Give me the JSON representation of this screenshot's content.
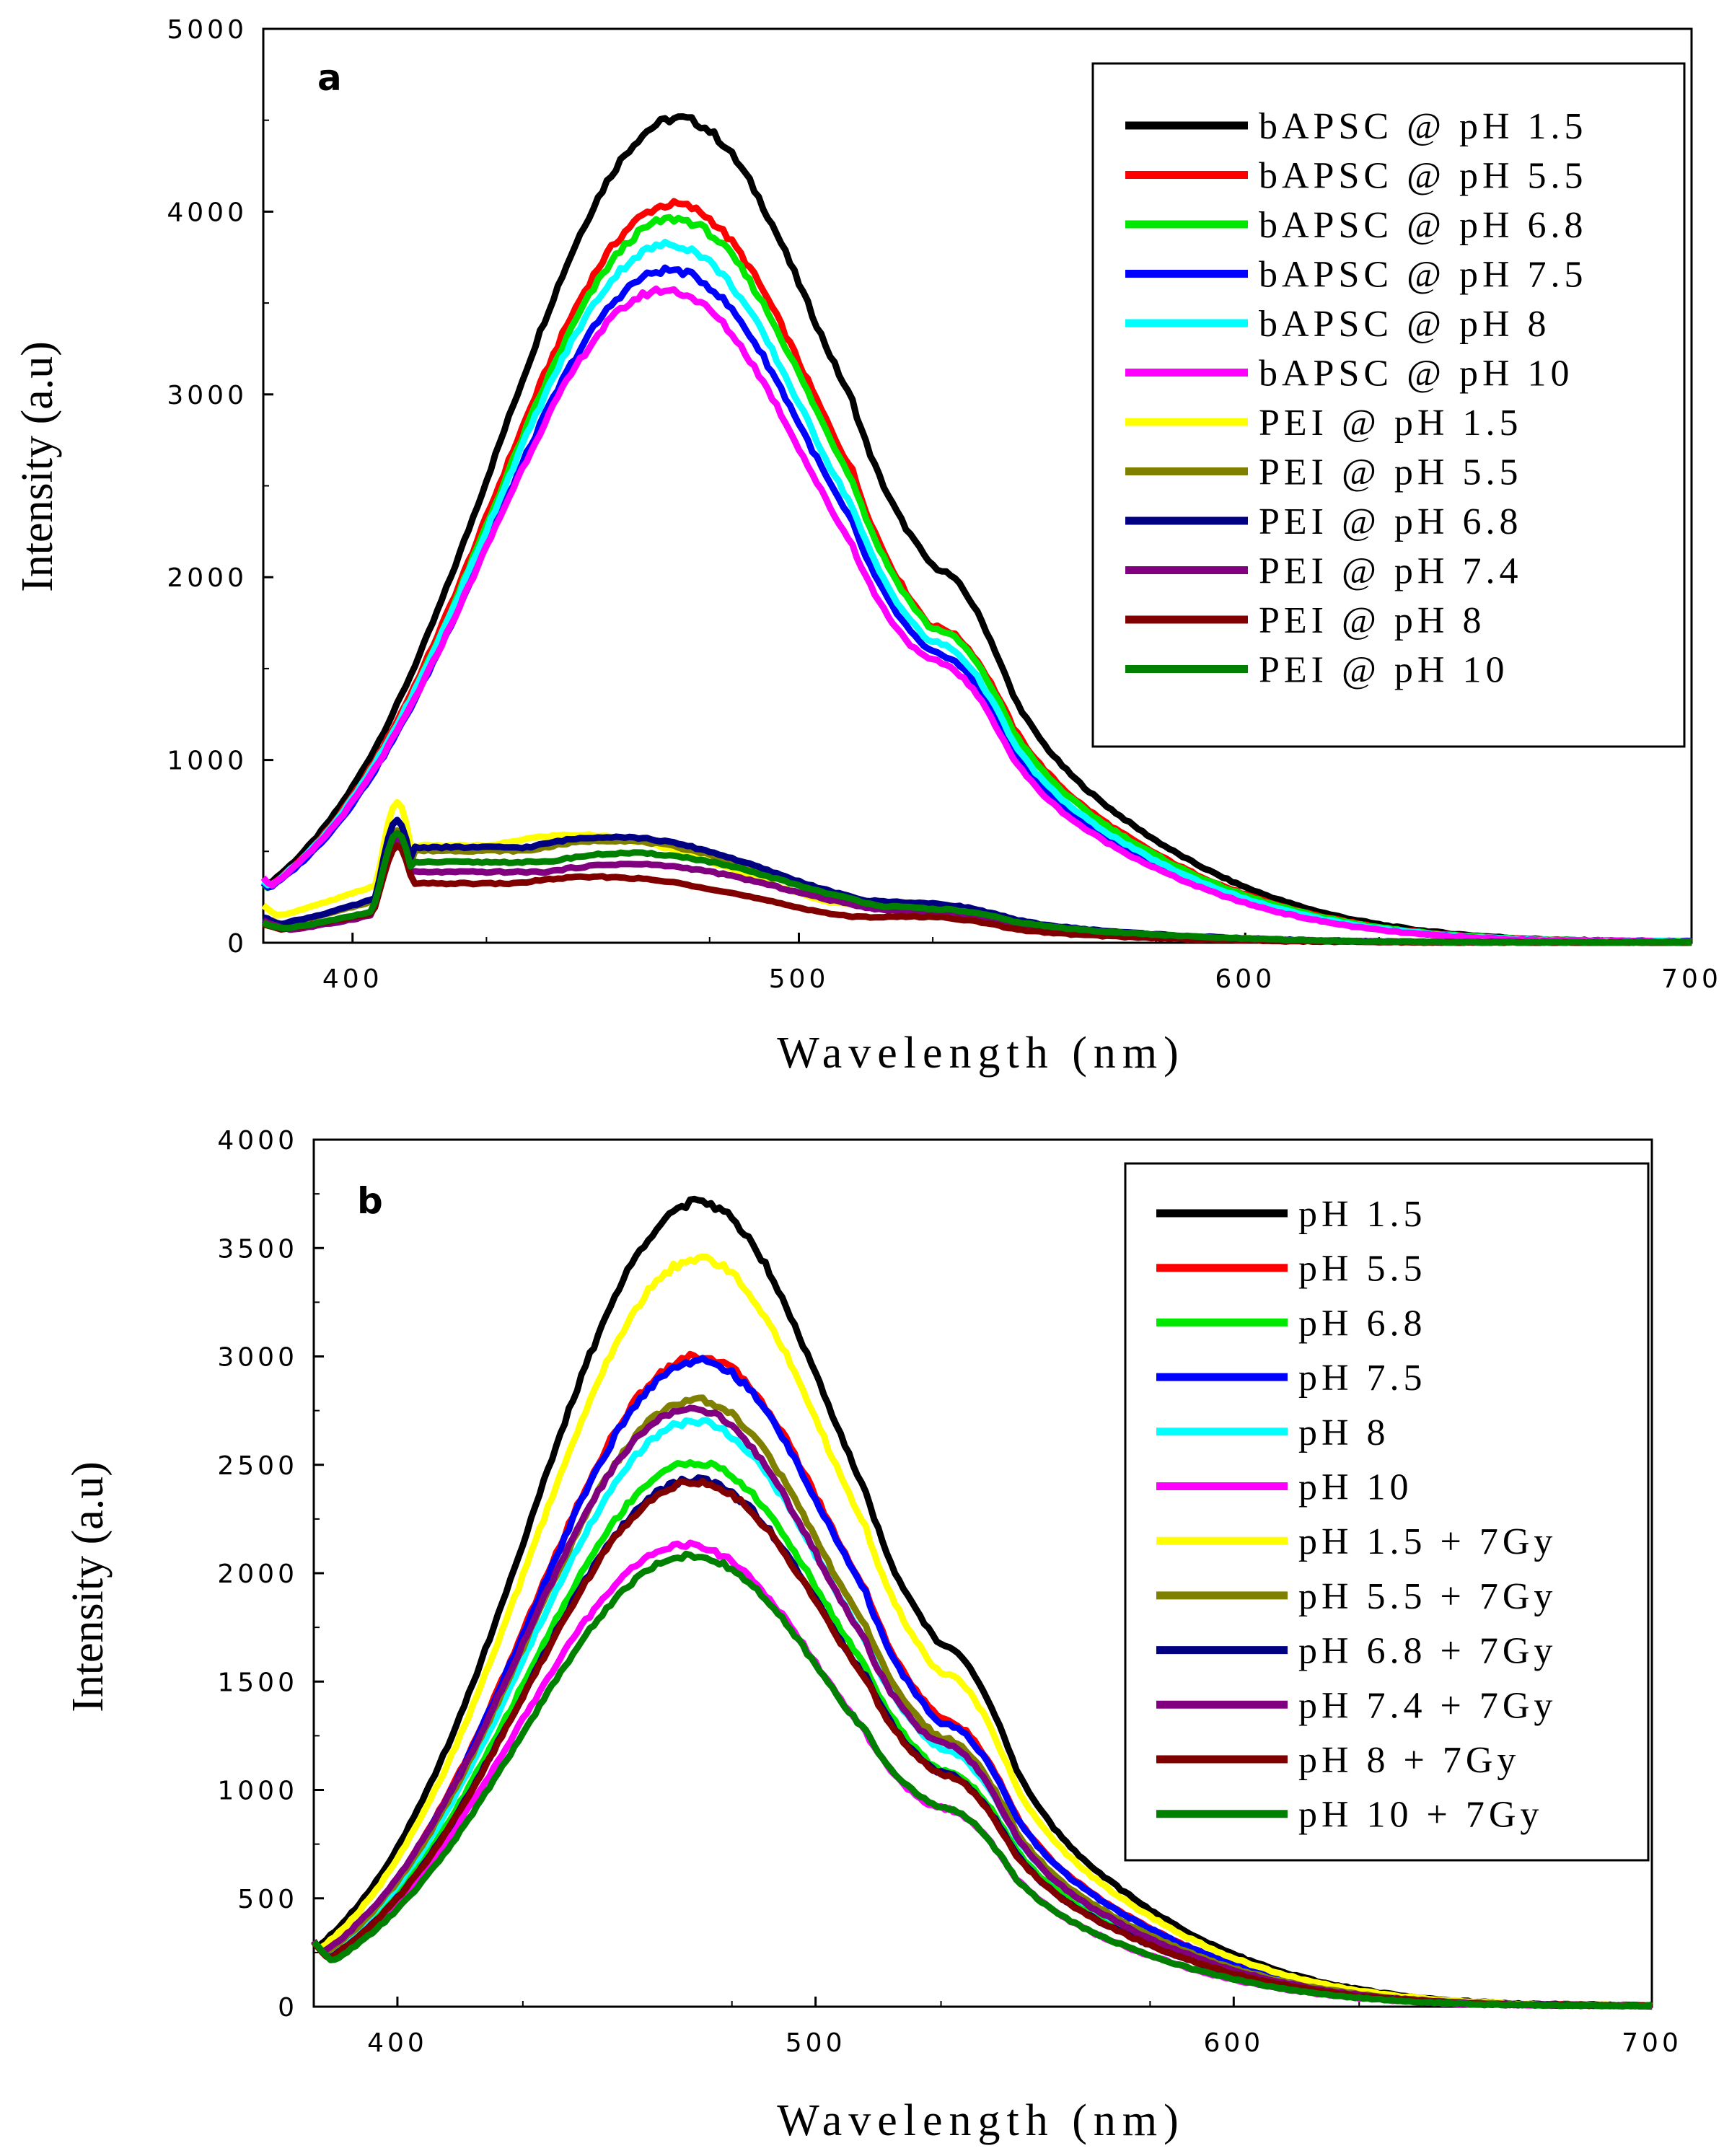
{
  "colors": {
    "black": "#000000",
    "red": "#ff0000",
    "green": "#00e800",
    "blue": "#0000ff",
    "cyan": "#00ffff",
    "magenta": "#ff00ff",
    "yellow": "#ffff00",
    "olive": "#808000",
    "navy": "#000080",
    "purple": "#800080",
    "maroon": "#800000",
    "darkgreen": "#008000"
  },
  "chart_data": [
    {
      "type": "line",
      "panel_label": "a",
      "xlabel": "Wavelength (nm)",
      "ylabel": "Intensity (a.u)",
      "xlim": [
        380,
        700
      ],
      "ylim": [
        0,
        5000
      ],
      "xticks": [
        400,
        500,
        600,
        700
      ],
      "yticks": [
        0,
        1000,
        2000,
        3000,
        4000,
        5000
      ],
      "legend_position": "top-right",
      "shoulder_x": 530,
      "series": [
        {
          "name": "bAPSC @ pH 1.5",
          "color": "#000000",
          "peak_x": 473,
          "peak_y": 4510,
          "shoulder_y": 1900,
          "start_y": 340,
          "bump_y": 0
        },
        {
          "name": "bAPSC @ pH 5.5",
          "color": "#ff0000",
          "peak_x": 472,
          "peak_y": 4040,
          "shoulder_y": 1560,
          "start_y": 330,
          "bump_y": 0
        },
        {
          "name": "bAPSC @ pH 6.8",
          "color": "#00e800",
          "peak_x": 472,
          "peak_y": 3960,
          "shoulder_y": 1560,
          "start_y": 330,
          "bump_y": 0
        },
        {
          "name": "bAPSC @ pH 7.5",
          "color": "#0000ff",
          "peak_x": 471,
          "peak_y": 3680,
          "shoulder_y": 1450,
          "start_y": 330,
          "bump_y": 0
        },
        {
          "name": "bAPSC @ pH 8",
          "color": "#00ffff",
          "peak_x": 471,
          "peak_y": 3820,
          "shoulder_y": 1500,
          "start_y": 340,
          "bump_y": 0
        },
        {
          "name": "bAPSC @ pH 10",
          "color": "#ff00ff",
          "peak_x": 470,
          "peak_y": 3570,
          "shoulder_y": 1420,
          "start_y": 360,
          "bump_y": 0
        },
        {
          "name": "PEI @ pH 1.5",
          "color": "#ffff00",
          "peak_x": 450,
          "peak_y": 590,
          "shoulder_y": 190,
          "start_y": 200,
          "bump_y": 770
        },
        {
          "name": "PEI @ pH 5.5",
          "color": "#808000",
          "peak_x": 458,
          "peak_y": 560,
          "shoulder_y": 180,
          "start_y": 140,
          "bump_y": 620
        },
        {
          "name": "PEI @ pH 6.8",
          "color": "#000080",
          "peak_x": 458,
          "peak_y": 580,
          "shoulder_y": 200,
          "start_y": 140,
          "bump_y": 670
        },
        {
          "name": "PEI @ pH 7.4",
          "color": "#800080",
          "peak_x": 462,
          "peak_y": 430,
          "shoulder_y": 160,
          "start_y": 120,
          "bump_y": 560
        },
        {
          "name": "PEI @ pH 8",
          "color": "#800000",
          "peak_x": 455,
          "peak_y": 360,
          "shoulder_y": 140,
          "start_y": 100,
          "bump_y": 530
        },
        {
          "name": "PEI @ pH 10",
          "color": "#008000",
          "peak_x": 462,
          "peak_y": 490,
          "shoulder_y": 170,
          "start_y": 110,
          "bump_y": 600
        }
      ]
    },
    {
      "type": "line",
      "panel_label": "b",
      "xlabel": "Wavelength (nm)",
      "ylabel": "Intensity (a.u)",
      "xlim": [
        380,
        700
      ],
      "ylim": [
        0,
        4000
      ],
      "xticks": [
        400,
        500,
        600,
        700
      ],
      "yticks": [
        0,
        500,
        1000,
        1500,
        2000,
        2500,
        3000,
        3500,
        4000
      ],
      "legend_position": "top-right",
      "shoulder_x": 530,
      "series": [
        {
          "name": "pH 1.5",
          "color": "#000000",
          "peak_x": 472,
          "peak_y": 3710,
          "shoulder_y": 1550,
          "start_y": 300,
          "bump_y": 0
        },
        {
          "name": "pH 5.5",
          "color": "#ff0000",
          "peak_x": 472,
          "peak_y": 3000,
          "shoulder_y": 1220,
          "start_y": 300,
          "bump_y": 0
        },
        {
          "name": "pH 6.8",
          "color": "#00e800",
          "peak_x": 471,
          "peak_y": 2510,
          "shoulder_y": 1000,
          "start_y": 300,
          "bump_y": 0
        },
        {
          "name": "pH 7.5",
          "color": "#0000ff",
          "peak_x": 472,
          "peak_y": 2980,
          "shoulder_y": 1200,
          "start_y": 300,
          "bump_y": 0
        },
        {
          "name": "pH 8",
          "color": "#00ffff",
          "peak_x": 471,
          "peak_y": 2700,
          "shoulder_y": 1100,
          "start_y": 300,
          "bump_y": 0
        },
        {
          "name": "pH 10",
          "color": "#ff00ff",
          "peak_x": 469,
          "peak_y": 2130,
          "shoulder_y": 850,
          "start_y": 300,
          "bump_y": 0
        },
        {
          "name": "pH 1.5 + 7Gy",
          "color": "#ffff00",
          "peak_x": 472,
          "peak_y": 3450,
          "shoulder_y": 1420,
          "start_y": 300,
          "bump_y": 0
        },
        {
          "name": "pH 5.5 + 7Gy",
          "color": "#808000",
          "peak_x": 471,
          "peak_y": 2800,
          "shoulder_y": 1150,
          "start_y": 300,
          "bump_y": 0
        },
        {
          "name": "pH 6.8 + 7Gy",
          "color": "#000080",
          "peak_x": 471,
          "peak_y": 2430,
          "shoulder_y": 1000,
          "start_y": 300,
          "bump_y": 0
        },
        {
          "name": "pH 7.4 + 7Gy",
          "color": "#800080",
          "peak_x": 470,
          "peak_y": 2760,
          "shoulder_y": 1130,
          "start_y": 300,
          "bump_y": 0
        },
        {
          "name": "pH 8 + 7Gy",
          "color": "#800000",
          "peak_x": 471,
          "peak_y": 2420,
          "shoulder_y": 990,
          "start_y": 300,
          "bump_y": 0
        },
        {
          "name": "pH 10 + 7Gy",
          "color": "#008000",
          "peak_x": 470,
          "peak_y": 2080,
          "shoulder_y": 860,
          "start_y": 300,
          "bump_y": 0
        }
      ]
    }
  ]
}
